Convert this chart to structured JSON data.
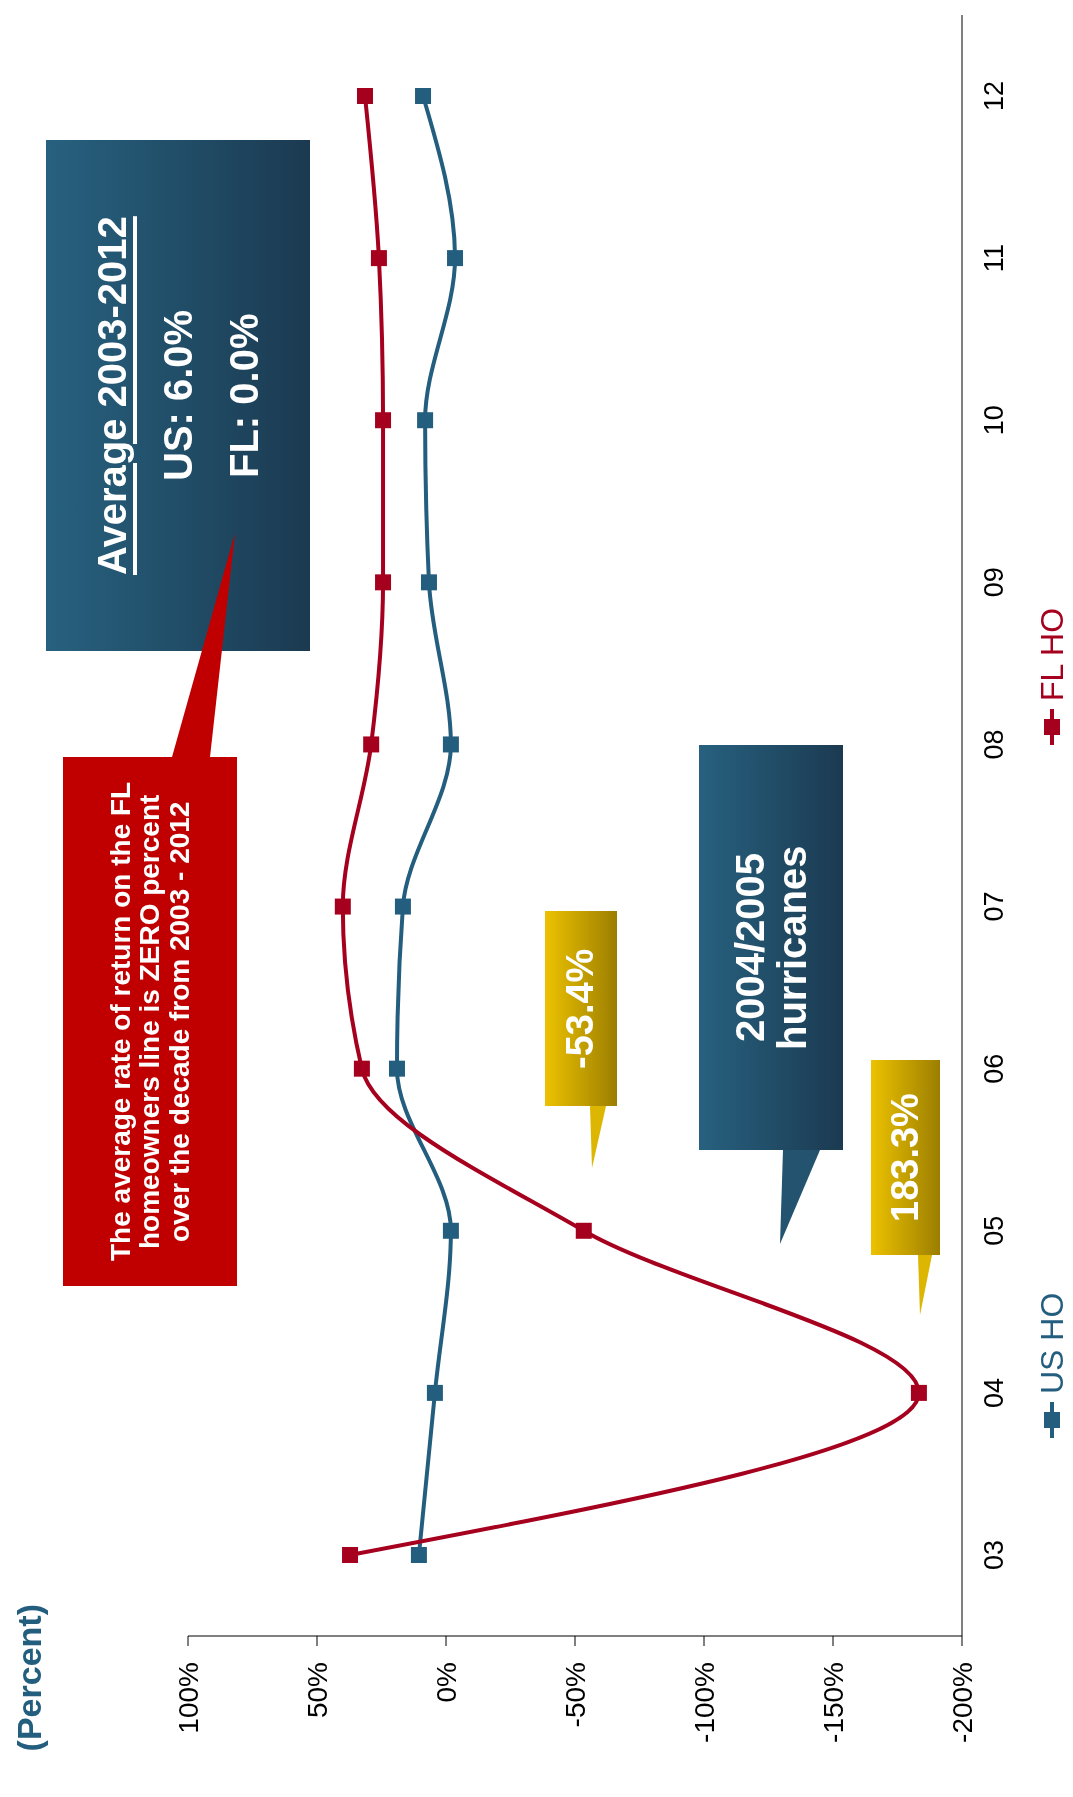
{
  "chart_data": {
    "type": "line",
    "orientation": "horizontal",
    "categories": [
      "12",
      "11",
      "10",
      "09",
      "08",
      "07",
      "06",
      "05",
      "04",
      "03"
    ],
    "series": [
      {
        "name": "US HO",
        "color": "#245e7f",
        "values": [
          8.9,
          -3.5,
          8.1,
          6.6,
          -1.9,
          16.7,
          19,
          -1.9,
          4.3,
          10.5
        ]
      },
      {
        "name": "FL HO",
        "color": "#a6001f",
        "values": [
          31.4,
          26,
          24.4,
          24.4,
          29,
          40,
          32.6,
          -53.4,
          -183.3,
          37.2
        ]
      }
    ],
    "xlim": [
      100,
      -200
    ],
    "xticks": [
      {
        "value": 100,
        "label": "100%"
      },
      {
        "value": 50,
        "label": "50%"
      },
      {
        "value": 0,
        "label": "0%"
      },
      {
        "value": -50,
        "label": "-50%"
      },
      {
        "value": -100,
        "label": "-100%"
      },
      {
        "value": -150,
        "label": "-150%"
      },
      {
        "value": -200,
        "label": "-200%"
      }
    ],
    "legend": "right",
    "marker": "square",
    "line_style": "solid",
    "annotations": [
      "Average 2003-2012",
      "US: 6.0%",
      "FL: 0.0%",
      "The average rate of return on the FL homeowners line is ZERO percent over the decade from 2003 - 2012",
      "2004/2005 hurricanes",
      "-53.4%",
      "183.3%",
      "(Percent)"
    ]
  }
}
